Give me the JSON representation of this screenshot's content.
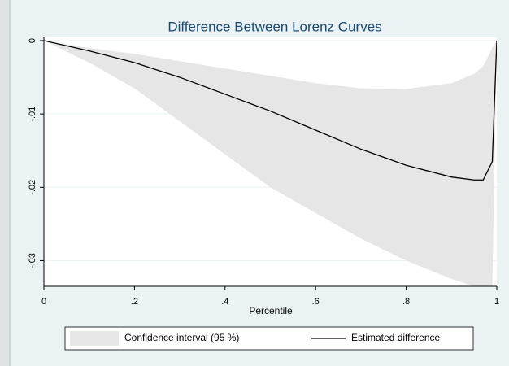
{
  "chart_data": {
    "type": "line",
    "title": "Difference Between Lorenz Curves",
    "x_label": "Percentile",
    "x": [
      0,
      0.1,
      0.2,
      0.3,
      0.4,
      0.5,
      0.6,
      0.7,
      0.8,
      0.9,
      0.95,
      0.97,
      0.99,
      1
    ],
    "series": [
      {
        "name": "Confidence interval (95 %)",
        "type": "area",
        "color": "#e6e6e6",
        "low": [
          0,
          -0.003,
          -0.0065,
          -0.011,
          -0.0155,
          -0.02,
          -0.0235,
          -0.027,
          -0.03,
          -0.0325,
          -0.0335,
          -0.0335,
          -0.0335,
          0
        ],
        "high": [
          0,
          -0.001,
          -0.0018,
          -0.0028,
          -0.0038,
          -0.0048,
          -0.0058,
          -0.0065,
          -0.0066,
          -0.0058,
          -0.0045,
          -0.0035,
          -0.001,
          0
        ]
      },
      {
        "name": "Estimated difference",
        "type": "line",
        "color": "#000000",
        "values": [
          0,
          -0.0014,
          -0.003,
          -0.005,
          -0.0073,
          -0.0096,
          -0.0122,
          -0.0148,
          -0.017,
          -0.0186,
          -0.019,
          -0.019,
          -0.0165,
          0
        ]
      }
    ],
    "xlim": [
      0,
      1
    ],
    "xticks": [
      0,
      {
        "value": 0.2,
        "label": ".2"
      },
      {
        "value": 0.4,
        "label": ".4"
      },
      {
        "value": 0.6,
        "label": ".6"
      },
      {
        "value": 0.8,
        "label": ".8"
      },
      1
    ],
    "ylim": [
      -0.0335,
      0
    ],
    "yticks": [
      0,
      {
        "value": -0.01,
        "label": "-.01"
      },
      {
        "value": -0.02,
        "label": "-.02"
      },
      {
        "value": -0.03,
        "label": "-.03"
      }
    ],
    "grid": true
  }
}
